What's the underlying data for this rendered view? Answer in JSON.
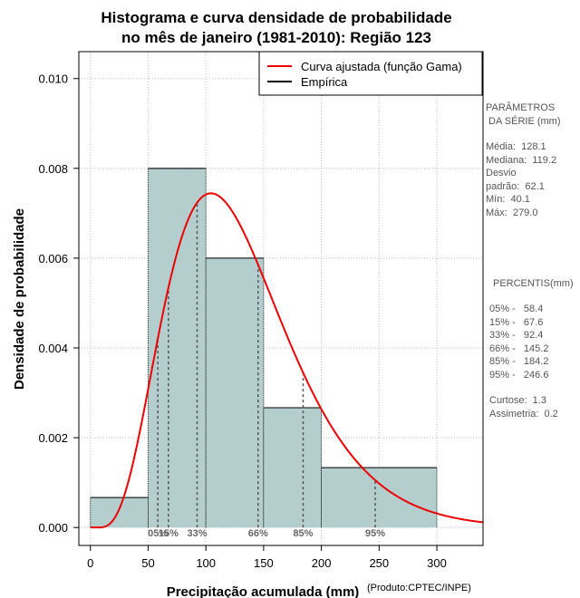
{
  "chart_data": {
    "type": "bar",
    "title_line1": "Histograma e curva densidade de probabilidade",
    "title_line2": "no mês de janeiro (1981-2010): Região 123",
    "xlabel": "Precipitação acumulada (mm)",
    "ylabel": "Densidade de probabilidade",
    "credit": "(Produto:CPTEC/INPE)",
    "xlim": [
      -10,
      340
    ],
    "ylim": [
      -0.0004,
      0.0106
    ],
    "x_ticks": [
      0,
      50,
      100,
      150,
      200,
      250,
      300
    ],
    "x_tick_labels": [
      "0",
      "50",
      "100",
      "150",
      "200",
      "250",
      "300"
    ],
    "y_ticks": [
      0,
      0.002,
      0.004,
      0.006,
      0.008,
      0.01
    ],
    "y_tick_labels": [
      "0.000",
      "0.002",
      "0.004",
      "0.006",
      "0.008",
      "0.010"
    ],
    "grid": true,
    "bins": [
      {
        "from": 0,
        "to": 50,
        "density": 0.000667
      },
      {
        "from": 50,
        "to": 100,
        "density": 0.008
      },
      {
        "from": 100,
        "to": 150,
        "density": 0.006
      },
      {
        "from": 150,
        "to": 200,
        "density": 0.002667
      },
      {
        "from": 200,
        "to": 300,
        "density": 0.001333
      }
    ],
    "gamma_fit": {
      "name": "Curva ajustada (função Gama)",
      "shape": 4.6,
      "scale": 27.6,
      "start": 5,
      "color": "#ee0000"
    },
    "legend": [
      {
        "label": "Curva ajustada (função Gama)",
        "color": "#ee0000"
      },
      {
        "label": "Empírica",
        "color": "#000000"
      }
    ],
    "legend_position": "top-right",
    "percentile_markers": [
      {
        "label": "05%",
        "value": 58.4
      },
      {
        "label": "15%",
        "value": 67.6
      },
      {
        "label": "33%",
        "value": 92.4
      },
      {
        "label": "66%",
        "value": 145.2
      },
      {
        "label": "85%",
        "value": 184.2
      },
      {
        "label": "95%",
        "value": 246.6
      }
    ],
    "colors": {
      "bar_fill": "#b4cdcd",
      "curve": "#ee0000",
      "grid": "#bebebe"
    }
  },
  "sidebar": {
    "params_title": "PARÂMETROS\n DA SÉRIE (mm)",
    "params_text": "Média:  128.1\nMediana:  119.2\nDesvio\npadrão:  62.1\nMín:  40.1\nMáx:  279.0",
    "percentis_title": "PERCENTIS(mm)",
    "percentis_text": "05% -   58.4\n15% -   67.6\n33% -   92.4\n66% -   145.2\n85% -   184.2\n95% -   246.6",
    "stats_text": "Curtose:  1.3\nAssimetria:  0.2"
  }
}
